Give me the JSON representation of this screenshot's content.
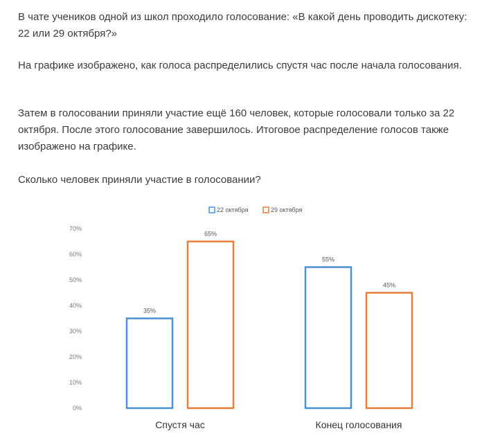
{
  "problem": {
    "paragraphs": [
      "В чате учеников одной из школ проходило голосование: «В какой день проводить дискотеку: 22 или 29 октября?»",
      "На графике изображено, как голоса распределились спустя час после начала голосования.",
      "Затем в голосовании приняли участие ещё 160 человек, которые голосовали только за 22 октября. После этого голосование завершилось. Итоговое распределение голосов также изображено на графике.",
      "Сколько человек приняли участие в голосовании?"
    ]
  },
  "chart_data": {
    "type": "bar",
    "categories": [
      "Спустя час",
      "Конец голосования"
    ],
    "series": [
      {
        "name": "22 октября",
        "values": [
          35,
          55
        ],
        "labels": [
          "35%",
          "55%"
        ],
        "color": "#4a8fd4"
      },
      {
        "name": "29 октября",
        "values": [
          65,
          45
        ],
        "labels": [
          "65%",
          "45%"
        ],
        "color": "#e67e3a"
      }
    ],
    "yticks": [
      "0%",
      "10%",
      "20%",
      "30%",
      "40%",
      "50%",
      "60%",
      "70%"
    ],
    "ylim": [
      0,
      70
    ],
    "legend": "top-center",
    "grid": false
  }
}
